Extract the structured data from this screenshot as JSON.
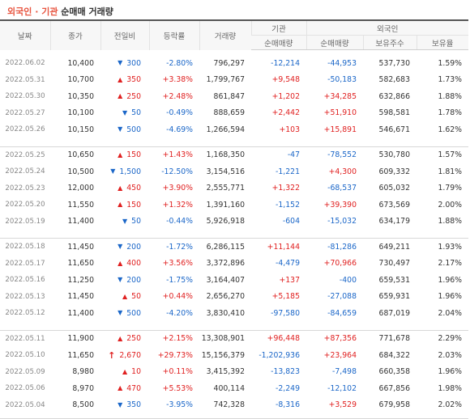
{
  "title": {
    "accent": "외국인 · 기관",
    "rest": " 순매매 거래량"
  },
  "headers": {
    "date": "날짜",
    "close": "종가",
    "change": "전일비",
    "rate": "등락률",
    "volume": "거래량",
    "institution": "기관",
    "foreign": "외국인",
    "inst_net": "순매매량",
    "frgn_net": "순매매량",
    "frgn_hold": "보유주수",
    "frgn_ratio": "보유율"
  },
  "colors": {
    "up": "#e02020",
    "down": "#1a66c8",
    "accent": "#e8543f"
  },
  "rows": [
    {
      "date": "2022.06.02",
      "close": "10,400",
      "dir": "down",
      "change": "300",
      "rate": "-2.80%",
      "volume": "796,297",
      "inst": "-12,214",
      "frgn": "-44,953",
      "hold": "537,730",
      "ratio": "1.59%"
    },
    {
      "date": "2022.05.31",
      "close": "10,700",
      "dir": "up",
      "change": "350",
      "rate": "+3.38%",
      "volume": "1,799,767",
      "inst": "+9,548",
      "frgn": "-50,183",
      "hold": "582,683",
      "ratio": "1.73%"
    },
    {
      "date": "2022.05.30",
      "close": "10,350",
      "dir": "up",
      "change": "250",
      "rate": "+2.48%",
      "volume": "861,847",
      "inst": "+1,202",
      "frgn": "+34,285",
      "hold": "632,866",
      "ratio": "1.88%"
    },
    {
      "date": "2022.05.27",
      "close": "10,100",
      "dir": "down",
      "change": "50",
      "rate": "-0.49%",
      "volume": "888,659",
      "inst": "+2,442",
      "frgn": "+51,910",
      "hold": "598,581",
      "ratio": "1.78%"
    },
    {
      "date": "2022.05.26",
      "close": "10,150",
      "dir": "down",
      "change": "500",
      "rate": "-4.69%",
      "volume": "1,266,594",
      "inst": "+103",
      "frgn": "+15,891",
      "hold": "546,671",
      "ratio": "1.62%"
    },
    {
      "date": "2022.05.25",
      "close": "10,650",
      "dir": "up",
      "change": "150",
      "rate": "+1.43%",
      "volume": "1,168,350",
      "inst": "-47",
      "frgn": "-78,552",
      "hold": "530,780",
      "ratio": "1.57%"
    },
    {
      "date": "2022.05.24",
      "close": "10,500",
      "dir": "down",
      "change": "1,500",
      "rate": "-12.50%",
      "volume": "3,154,516",
      "inst": "-1,221",
      "frgn": "+4,300",
      "hold": "609,332",
      "ratio": "1.81%"
    },
    {
      "date": "2022.05.23",
      "close": "12,000",
      "dir": "up",
      "change": "450",
      "rate": "+3.90%",
      "volume": "2,555,771",
      "inst": "+1,322",
      "frgn": "-68,537",
      "hold": "605,032",
      "ratio": "1.79%"
    },
    {
      "date": "2022.05.20",
      "close": "11,550",
      "dir": "up",
      "change": "150",
      "rate": "+1.32%",
      "volume": "1,391,160",
      "inst": "-1,152",
      "frgn": "+39,390",
      "hold": "673,569",
      "ratio": "2.00%"
    },
    {
      "date": "2022.05.19",
      "close": "11,400",
      "dir": "down",
      "change": "50",
      "rate": "-0.44%",
      "volume": "5,926,918",
      "inst": "-604",
      "frgn": "-15,032",
      "hold": "634,179",
      "ratio": "1.88%"
    },
    {
      "date": "2022.05.18",
      "close": "11,450",
      "dir": "down",
      "change": "200",
      "rate": "-1.72%",
      "volume": "6,286,115",
      "inst": "+11,144",
      "frgn": "-81,286",
      "hold": "649,211",
      "ratio": "1.93%"
    },
    {
      "date": "2022.05.17",
      "close": "11,650",
      "dir": "up",
      "change": "400",
      "rate": "+3.56%",
      "volume": "3,372,896",
      "inst": "-4,479",
      "frgn": "+70,966",
      "hold": "730,497",
      "ratio": "2.17%"
    },
    {
      "date": "2022.05.16",
      "close": "11,250",
      "dir": "down",
      "change": "200",
      "rate": "-1.75%",
      "volume": "3,164,407",
      "inst": "+137",
      "frgn": "-400",
      "hold": "659,531",
      "ratio": "1.96%"
    },
    {
      "date": "2022.05.13",
      "close": "11,450",
      "dir": "up",
      "change": "50",
      "rate": "+0.44%",
      "volume": "2,656,270",
      "inst": "+5,185",
      "frgn": "-27,088",
      "hold": "659,931",
      "ratio": "1.96%"
    },
    {
      "date": "2022.05.12",
      "close": "11,400",
      "dir": "down",
      "change": "500",
      "rate": "-4.20%",
      "volume": "3,830,410",
      "inst": "-97,580",
      "frgn": "-84,659",
      "hold": "687,019",
      "ratio": "2.04%"
    },
    {
      "date": "2022.05.11",
      "close": "11,900",
      "dir": "up",
      "change": "250",
      "rate": "+2.15%",
      "volume": "13,308,901",
      "inst": "+96,448",
      "frgn": "+87,356",
      "hold": "771,678",
      "ratio": "2.29%"
    },
    {
      "date": "2022.05.10",
      "close": "11,650",
      "dir": "upper",
      "change": "2,670",
      "rate": "+29.73%",
      "volume": "15,156,379",
      "inst": "-1,202,936",
      "frgn": "+23,964",
      "hold": "684,322",
      "ratio": "2.03%"
    },
    {
      "date": "2022.05.09",
      "close": "8,980",
      "dir": "up",
      "change": "10",
      "rate": "+0.11%",
      "volume": "3,415,392",
      "inst": "-13,823",
      "frgn": "-7,498",
      "hold": "660,358",
      "ratio": "1.96%"
    },
    {
      "date": "2022.05.06",
      "close": "8,970",
      "dir": "up",
      "change": "470",
      "rate": "+5.53%",
      "volume": "400,114",
      "inst": "-2,249",
      "frgn": "-12,102",
      "hold": "667,856",
      "ratio": "1.98%"
    },
    {
      "date": "2022.05.04",
      "close": "8,500",
      "dir": "down",
      "change": "350",
      "rate": "-3.95%",
      "volume": "742,328",
      "inst": "-8,316",
      "frgn": "+3,529",
      "hold": "679,958",
      "ratio": "2.02%"
    }
  ]
}
